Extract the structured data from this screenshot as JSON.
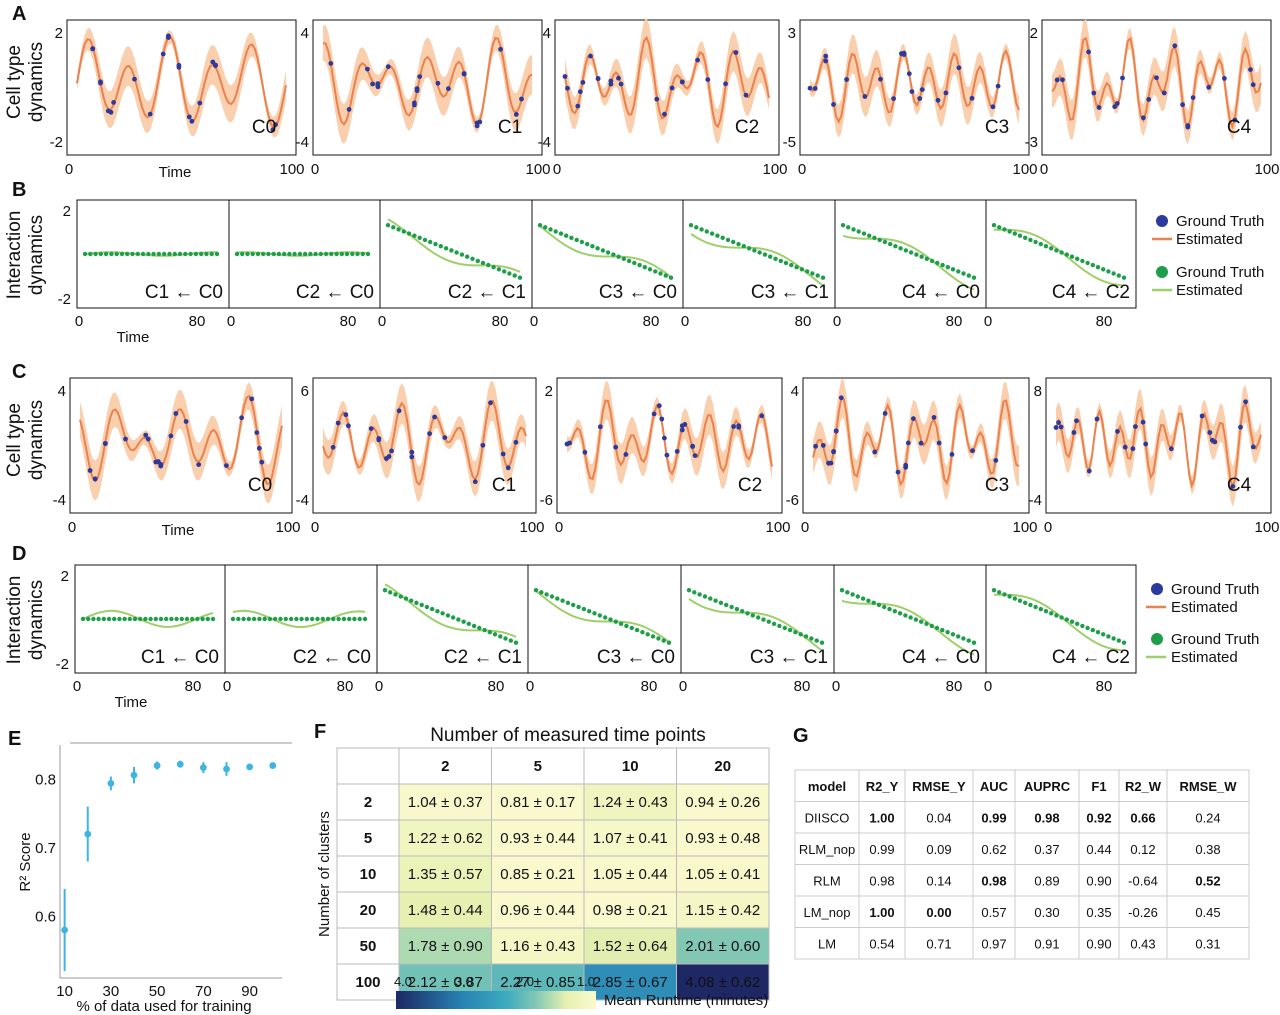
{
  "panels": {
    "A": "A",
    "B": "B",
    "C": "C",
    "D": "D",
    "E": "E",
    "F": "F",
    "G": "G"
  },
  "cell_type_rows": [
    {
      "panel": "A",
      "ylabel_line1": "Cell type",
      "ylabel_line2": "dynamics",
      "xlabel": "Time",
      "subplots": [
        {
          "label": "C0",
          "ymin_label": "-2",
          "ymax_label": "2",
          "x0": "0",
          "x1": "100"
        },
        {
          "label": "C1",
          "ymin_label": "-4",
          "ymax_label": "4",
          "x0": "0",
          "x1": "100"
        },
        {
          "label": "C2",
          "ymin_label": "-4",
          "ymax_label": "4",
          "x0": "0",
          "x1": "100"
        },
        {
          "label": "C3",
          "ymin_label": "-5",
          "ymax_label": "3",
          "x0": "0",
          "x1": "100"
        },
        {
          "label": "C4",
          "ymin_label": "-3",
          "ymax_label": "2",
          "x0": "0",
          "x1": "100"
        }
      ]
    },
    {
      "panel": "C",
      "ylabel_line1": "Cell type",
      "ylabel_line2": "dynamics",
      "xlabel": "Time",
      "subplots": [
        {
          "label": "C0",
          "ymin_label": "-4",
          "ymax_label": "4",
          "x0": "0",
          "x1": "100"
        },
        {
          "label": "C1",
          "ymin_label": "-4",
          "ymax_label": "6",
          "x0": "0",
          "x1": "100"
        },
        {
          "label": "C2",
          "ymin_label": "-6",
          "ymax_label": "2",
          "x0": "0",
          "x1": "100"
        },
        {
          "label": "C3",
          "ymin_label": "-6",
          "ymax_label": "4",
          "x0": "0",
          "x1": "100"
        },
        {
          "label": "C4",
          "ymin_label": "-4",
          "ymax_label": "8",
          "x0": "0",
          "x1": "100"
        }
      ]
    }
  ],
  "interaction_rows": [
    {
      "panel": "B",
      "ylabel_line1": "Interaction",
      "ylabel_line2": "dynamics",
      "xlabel": "Time",
      "ymin_label": "-2",
      "ymax_label": "2",
      "x0": "0",
      "x1": "80",
      "subplots": [
        "C1 ← C0",
        "C2 ← C0",
        "C2 ← C1",
        "C3 ← C0",
        "C3 ← C1",
        "C4 ← C0",
        "C4 ← C2"
      ]
    },
    {
      "panel": "D",
      "ylabel_line1": "Interaction",
      "ylabel_line2": "dynamics",
      "xlabel": "Time",
      "ymin_label": "-2",
      "ymax_label": "2",
      "x0": "0",
      "x1": "80",
      "subplots": [
        "C1 ← C0",
        "C2 ← C0",
        "C2 ← C1",
        "C3 ← C0",
        "C3 ← C1",
        "C4 ← C0",
        "C4 ← C2"
      ]
    }
  ],
  "legend": [
    {
      "marker": "Ground Truth",
      "line": "Estimated",
      "color_dot": "#2b3a9c",
      "color_line": "#e9824f"
    },
    {
      "marker": "Ground Truth",
      "line": "Estimated",
      "color_dot": "#1e9e4a",
      "color_line": "#9fcf6a"
    }
  ],
  "colors": {
    "band": "#f9cfae",
    "estimated": "#e9824f",
    "truth_dot": "#2b3a9c",
    "interaction_dot": "#1e9e4a",
    "interaction_line": "#9fcf6a",
    "errorbar": "#3fb4e3"
  },
  "chart_data": [
    {
      "type": "scatter",
      "panel": "E",
      "xlabel": "% of data used for training",
      "ylabel": "R² Score",
      "x": [
        10,
        20,
        30,
        40,
        50,
        60,
        70,
        80,
        90,
        100
      ],
      "y": [
        0.58,
        0.72,
        0.794,
        0.806,
        0.82,
        0.822,
        0.817,
        0.815,
        0.818,
        0.82
      ],
      "yerr": [
        0.06,
        0.04,
        0.01,
        0.012,
        0.006,
        0.005,
        0.008,
        0.01,
        0.004,
        0.003
      ],
      "xticks": [
        "10",
        "30",
        "50",
        "70",
        "90"
      ],
      "yticks": [
        "0.6",
        "0.7",
        "0.8"
      ],
      "xlim": [
        8,
        104
      ],
      "ylim": [
        0.51,
        0.85
      ]
    },
    {
      "type": "heatmap",
      "panel": "F",
      "title": "Number of measured time points",
      "ylabel": "Number of clusters",
      "col_labels": [
        "2",
        "5",
        "10",
        "20"
      ],
      "row_labels": [
        "2",
        "5",
        "10",
        "20",
        "50",
        "100"
      ],
      "cells": [
        [
          "1.04 ± 0.37",
          "0.81 ± 0.17",
          "1.24 ± 0.43",
          "0.94 ± 0.26"
        ],
        [
          "1.22 ± 0.62",
          "0.93 ± 0.44",
          "1.07 ± 0.41",
          "0.93 ± 0.48"
        ],
        [
          "1.35 ± 0.57",
          "0.85 ± 0.21",
          "1.05 ± 0.44",
          "1.05 ± 0.41"
        ],
        [
          "1.48 ± 0.44",
          "0.96 ± 0.44",
          "0.98 ± 0.21",
          "1.15 ± 0.42"
        ],
        [
          "1.78 ± 0.90",
          "1.16 ± 0.43",
          "1.52 ± 0.64",
          "2.01 ± 0.60"
        ],
        [
          "2.12 ± 0.87",
          "2.27 ± 0.85",
          "2.85 ± 0.67",
          "4.08 ± 0.62"
        ]
      ],
      "values": [
        [
          1.04,
          0.81,
          1.24,
          0.94
        ],
        [
          1.22,
          0.93,
          1.07,
          0.93
        ],
        [
          1.35,
          0.85,
          1.05,
          1.05
        ],
        [
          1.48,
          0.96,
          0.98,
          1.15
        ],
        [
          1.78,
          1.16,
          1.52,
          2.01
        ],
        [
          2.12,
          2.27,
          2.85,
          4.08
        ]
      ],
      "colorbar_label": "Mean Runtime (minutes)",
      "colorbar_ticks": [
        "4.0",
        "3.0",
        "2.0",
        "1.0"
      ],
      "colorbar_range": [
        4.0,
        1.0
      ]
    },
    {
      "type": "table",
      "panel": "G",
      "headers": [
        "model",
        "R2_Y",
        "RMSE_Y",
        "AUC",
        "AUPRC",
        "F1",
        "R2_W",
        "RMSE_W"
      ],
      "rows": [
        {
          "cells": [
            "DIISCO",
            "1.00",
            "0.04",
            "0.99",
            "0.98",
            "0.92",
            "0.66",
            "0.24"
          ],
          "bold": [
            false,
            true,
            false,
            true,
            true,
            true,
            true,
            false
          ]
        },
        {
          "cells": [
            "RLM_nop",
            "0.99",
            "0.09",
            "0.62",
            "0.37",
            "0.44",
            "0.12",
            "0.38"
          ],
          "bold": [
            false,
            false,
            false,
            false,
            false,
            false,
            false,
            false
          ]
        },
        {
          "cells": [
            "RLM",
            "0.98",
            "0.14",
            "0.98",
            "0.89",
            "0.90",
            "-0.64",
            "0.52"
          ],
          "bold": [
            false,
            false,
            false,
            true,
            false,
            false,
            false,
            true
          ]
        },
        {
          "cells": [
            "LM_nop",
            "1.00",
            "0.00",
            "0.57",
            "0.30",
            "0.35",
            "-0.26",
            "0.45"
          ],
          "bold": [
            false,
            true,
            true,
            false,
            false,
            false,
            false,
            false
          ]
        },
        {
          "cells": [
            "LM",
            "0.54",
            "0.71",
            "0.97",
            "0.91",
            "0.90",
            "0.43",
            "0.31"
          ],
          "bold": [
            false,
            false,
            false,
            false,
            false,
            false,
            false,
            false
          ]
        }
      ]
    }
  ]
}
